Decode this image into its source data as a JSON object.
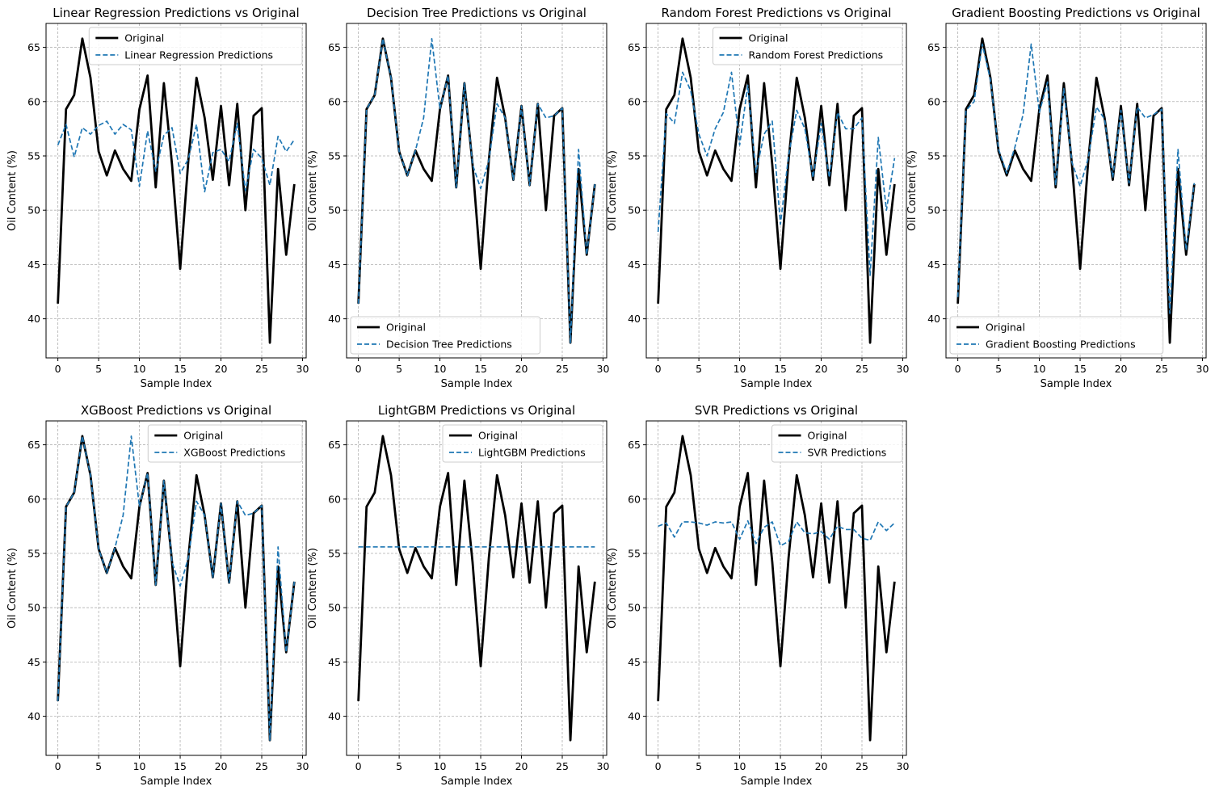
{
  "chart_data": [
    {
      "type": "line",
      "title": "Linear Regression Predictions vs Original",
      "xlabel": "Sample Index",
      "ylabel": "Oil Content (%)",
      "xlim": [
        -1.45,
        30.45
      ],
      "ylim": [
        36.4,
        67.2
      ],
      "xticks": [
        0,
        5,
        10,
        15,
        20,
        25,
        30
      ],
      "yticks": [
        40,
        45,
        50,
        55,
        60,
        65
      ],
      "grid": true,
      "legend_position": "upper right",
      "x": [
        0,
        1,
        2,
        3,
        4,
        5,
        6,
        7,
        8,
        9,
        10,
        11,
        12,
        13,
        14,
        15,
        16,
        17,
        18,
        19,
        20,
        21,
        22,
        23,
        24,
        25,
        26,
        27,
        28,
        29
      ],
      "series": [
        {
          "name": "Original",
          "color": "#000000",
          "style": "solid",
          "values": [
            41.4,
            59.3,
            60.6,
            65.8,
            62.2,
            55.4,
            53.2,
            55.5,
            53.8,
            52.7,
            59.3,
            62.4,
            52.1,
            61.7,
            54.2,
            44.6,
            54.6,
            62.2,
            58.5,
            52.8,
            59.6,
            52.3,
            59.8,
            50.0,
            58.7,
            59.4,
            37.8,
            53.8,
            45.9,
            52.4
          ]
        },
        {
          "name": "Linear Regression Predictions",
          "color": "#1f77b4",
          "style": "dashed",
          "values": [
            56.0,
            57.9,
            54.9,
            57.6,
            57.0,
            57.8,
            58.2,
            57.0,
            57.9,
            57.4,
            52.2,
            57.3,
            53.6,
            56.9,
            57.6,
            53.4,
            54.7,
            57.9,
            51.7,
            55.3,
            55.6,
            54.5,
            58.0,
            51.8,
            55.6,
            54.8,
            52.3,
            56.8,
            55.4,
            56.5
          ]
        }
      ]
    },
    {
      "type": "line",
      "title": "Decision Tree Predictions vs Original",
      "xlabel": "Sample Index",
      "ylabel": "Oil Content (%)",
      "xlim": [
        -1.45,
        30.45
      ],
      "ylim": [
        36.4,
        67.2
      ],
      "xticks": [
        0,
        5,
        10,
        15,
        20,
        25,
        30
      ],
      "yticks": [
        40,
        45,
        50,
        55,
        60,
        65
      ],
      "grid": true,
      "legend_position": "lower left",
      "x": [
        0,
        1,
        2,
        3,
        4,
        5,
        6,
        7,
        8,
        9,
        10,
        11,
        12,
        13,
        14,
        15,
        16,
        17,
        18,
        19,
        20,
        21,
        22,
        23,
        24,
        25,
        26,
        27,
        28,
        29
      ],
      "series": [
        {
          "name": "Original",
          "color": "#000000",
          "style": "solid",
          "values": [
            41.4,
            59.3,
            60.6,
            65.8,
            62.2,
            55.4,
            53.2,
            55.5,
            53.8,
            52.7,
            59.3,
            62.4,
            52.1,
            61.7,
            54.2,
            44.6,
            54.6,
            62.2,
            58.5,
            52.8,
            59.6,
            52.3,
            59.8,
            50.0,
            58.7,
            59.4,
            37.8,
            53.8,
            45.9,
            52.4
          ]
        },
        {
          "name": "Decision Tree Predictions",
          "color": "#1f77b4",
          "style": "dashed",
          "values": [
            41.4,
            59.3,
            60.6,
            65.8,
            62.2,
            55.4,
            53.2,
            55.5,
            58.5,
            65.8,
            59.3,
            62.4,
            52.1,
            61.7,
            54.2,
            52.0,
            54.6,
            59.8,
            58.5,
            52.8,
            59.6,
            52.3,
            59.8,
            58.5,
            58.7,
            59.4,
            37.8,
            55.6,
            45.9,
            52.4
          ]
        }
      ]
    },
    {
      "type": "line",
      "title": "Random Forest Predictions vs Original",
      "xlabel": "Sample Index",
      "ylabel": "Oil Content (%)",
      "xlim": [
        -1.45,
        30.45
      ],
      "ylim": [
        36.4,
        67.2
      ],
      "xticks": [
        0,
        5,
        10,
        15,
        20,
        25,
        30
      ],
      "yticks": [
        40,
        45,
        50,
        55,
        60,
        65
      ],
      "grid": true,
      "legend_position": "upper right",
      "x": [
        0,
        1,
        2,
        3,
        4,
        5,
        6,
        7,
        8,
        9,
        10,
        11,
        12,
        13,
        14,
        15,
        16,
        17,
        18,
        19,
        20,
        21,
        22,
        23,
        24,
        25,
        26,
        27,
        28,
        29
      ],
      "series": [
        {
          "name": "Original",
          "color": "#000000",
          "style": "solid",
          "values": [
            41.4,
            59.3,
            60.6,
            65.8,
            62.2,
            55.4,
            53.2,
            55.5,
            53.8,
            52.7,
            59.3,
            62.4,
            52.1,
            61.7,
            54.2,
            44.6,
            54.6,
            62.2,
            58.5,
            52.8,
            59.6,
            52.3,
            59.8,
            50.0,
            58.7,
            59.4,
            37.8,
            53.8,
            45.9,
            52.4
          ]
        },
        {
          "name": "Random Forest Predictions",
          "color": "#1f77b4",
          "style": "dashed",
          "values": [
            48.0,
            58.9,
            58.0,
            62.7,
            61.0,
            57.0,
            55.0,
            57.5,
            59.0,
            62.7,
            56.0,
            61.5,
            53.5,
            57.0,
            58.2,
            48.7,
            55.0,
            59.2,
            57.5,
            53.0,
            58.0,
            53.0,
            59.0,
            57.5,
            57.5,
            58.5,
            44.0,
            56.7,
            50.0,
            54.8
          ]
        }
      ]
    },
    {
      "type": "line",
      "title": "Gradient Boosting Predictions vs Original",
      "xlabel": "Sample Index",
      "ylabel": "Oil Content (%)",
      "xlim": [
        -1.45,
        30.45
      ],
      "ylim": [
        36.4,
        67.2
      ],
      "xticks": [
        0,
        5,
        10,
        15,
        20,
        25,
        30
      ],
      "yticks": [
        40,
        45,
        50,
        55,
        60,
        65
      ],
      "grid": true,
      "legend_position": "lower left",
      "x": [
        0,
        1,
        2,
        3,
        4,
        5,
        6,
        7,
        8,
        9,
        10,
        11,
        12,
        13,
        14,
        15,
        16,
        17,
        18,
        19,
        20,
        21,
        22,
        23,
        24,
        25,
        26,
        27,
        28,
        29
      ],
      "series": [
        {
          "name": "Original",
          "color": "#000000",
          "style": "solid",
          "values": [
            41.4,
            59.3,
            60.6,
            65.8,
            62.2,
            55.4,
            53.2,
            55.5,
            53.8,
            52.7,
            59.3,
            62.4,
            52.1,
            61.7,
            54.2,
            44.6,
            54.6,
            62.2,
            58.5,
            52.8,
            59.6,
            52.3,
            59.8,
            50.0,
            58.7,
            59.4,
            37.8,
            53.8,
            45.9,
            52.4
          ]
        },
        {
          "name": "Gradient Boosting Predictions",
          "color": "#1f77b4",
          "style": "dashed",
          "values": [
            42.0,
            59.2,
            60.0,
            65.3,
            62.0,
            55.6,
            53.4,
            55.8,
            58.8,
            65.3,
            59.0,
            61.8,
            52.3,
            61.2,
            54.4,
            52.2,
            54.8,
            59.5,
            58.4,
            53.0,
            59.2,
            52.5,
            59.5,
            58.5,
            58.8,
            59.3,
            40.5,
            55.6,
            46.3,
            52.5
          ]
        }
      ]
    },
    {
      "type": "line",
      "title": "XGBoost Predictions vs Original",
      "xlabel": "Sample Index",
      "ylabel": "Oil Content (%)",
      "xlim": [
        -1.45,
        30.45
      ],
      "ylim": [
        36.4,
        67.2
      ],
      "xticks": [
        0,
        5,
        10,
        15,
        20,
        25,
        30
      ],
      "yticks": [
        40,
        45,
        50,
        55,
        60,
        65
      ],
      "grid": true,
      "legend_position": "upper right",
      "x": [
        0,
        1,
        2,
        3,
        4,
        5,
        6,
        7,
        8,
        9,
        10,
        11,
        12,
        13,
        14,
        15,
        16,
        17,
        18,
        19,
        20,
        21,
        22,
        23,
        24,
        25,
        26,
        27,
        28,
        29
      ],
      "series": [
        {
          "name": "Original",
          "color": "#000000",
          "style": "solid",
          "values": [
            41.4,
            59.3,
            60.6,
            65.8,
            62.2,
            55.4,
            53.2,
            55.5,
            53.8,
            52.7,
            59.3,
            62.4,
            52.1,
            61.7,
            54.2,
            44.6,
            54.6,
            62.2,
            58.5,
            52.8,
            59.6,
            52.3,
            59.8,
            50.0,
            58.7,
            59.4,
            37.8,
            53.8,
            45.9,
            52.4
          ]
        },
        {
          "name": "XGBoost Predictions",
          "color": "#1f77b4",
          "style": "dashed",
          "values": [
            41.4,
            59.3,
            60.6,
            65.8,
            62.2,
            55.4,
            53.2,
            55.5,
            58.5,
            65.8,
            59.3,
            62.4,
            52.1,
            61.7,
            54.2,
            52.0,
            54.6,
            59.8,
            58.5,
            52.8,
            59.6,
            52.3,
            59.8,
            58.5,
            58.7,
            59.4,
            37.8,
            55.6,
            45.9,
            52.4
          ]
        }
      ]
    },
    {
      "type": "line",
      "title": "LightGBM Predictions vs Original",
      "xlabel": "Sample Index",
      "ylabel": "Oil Content (%)",
      "xlim": [
        -1.45,
        30.45
      ],
      "ylim": [
        36.4,
        67.2
      ],
      "xticks": [
        0,
        5,
        10,
        15,
        20,
        25,
        30
      ],
      "yticks": [
        40,
        45,
        50,
        55,
        60,
        65
      ],
      "grid": true,
      "legend_position": "upper right",
      "x": [
        0,
        1,
        2,
        3,
        4,
        5,
        6,
        7,
        8,
        9,
        10,
        11,
        12,
        13,
        14,
        15,
        16,
        17,
        18,
        19,
        20,
        21,
        22,
        23,
        24,
        25,
        26,
        27,
        28,
        29
      ],
      "series": [
        {
          "name": "Original",
          "color": "#000000",
          "style": "solid",
          "values": [
            41.4,
            59.3,
            60.6,
            65.8,
            62.2,
            55.4,
            53.2,
            55.5,
            53.8,
            52.7,
            59.3,
            62.4,
            52.1,
            61.7,
            54.2,
            44.6,
            54.6,
            62.2,
            58.5,
            52.8,
            59.6,
            52.3,
            59.8,
            50.0,
            58.7,
            59.4,
            37.8,
            53.8,
            45.9,
            52.4
          ]
        },
        {
          "name": "LightGBM Predictions",
          "color": "#1f77b4",
          "style": "dashed",
          "values": [
            55.6,
            55.6,
            55.6,
            55.6,
            55.6,
            55.6,
            55.6,
            55.6,
            55.6,
            55.6,
            55.6,
            55.6,
            55.6,
            55.6,
            55.6,
            55.6,
            55.6,
            55.6,
            55.6,
            55.6,
            55.6,
            55.6,
            55.6,
            55.6,
            55.6,
            55.6,
            55.6,
            55.6,
            55.6,
            55.6
          ]
        }
      ]
    },
    {
      "type": "line",
      "title": "SVR Predictions vs Original",
      "xlabel": "Sample Index",
      "ylabel": "Oil Content (%)",
      "xlim": [
        -1.45,
        30.45
      ],
      "ylim": [
        36.4,
        67.2
      ],
      "xticks": [
        0,
        5,
        10,
        15,
        20,
        25,
        30
      ],
      "yticks": [
        40,
        45,
        50,
        55,
        60,
        65
      ],
      "grid": true,
      "legend_position": "upper right",
      "x": [
        0,
        1,
        2,
        3,
        4,
        5,
        6,
        7,
        8,
        9,
        10,
        11,
        12,
        13,
        14,
        15,
        16,
        17,
        18,
        19,
        20,
        21,
        22,
        23,
        24,
        25,
        26,
        27,
        28,
        29
      ],
      "series": [
        {
          "name": "Original",
          "color": "#000000",
          "style": "solid",
          "values": [
            41.4,
            59.3,
            60.6,
            65.8,
            62.2,
            55.4,
            53.2,
            55.5,
            53.8,
            52.7,
            59.3,
            62.4,
            52.1,
            61.7,
            54.2,
            44.6,
            54.6,
            62.2,
            58.5,
            52.8,
            59.6,
            52.3,
            59.8,
            50.0,
            58.7,
            59.4,
            37.8,
            53.8,
            45.9,
            52.4
          ]
        },
        {
          "name": "SVR Predictions",
          "color": "#1f77b4",
          "style": "dashed",
          "values": [
            57.5,
            57.8,
            56.5,
            57.9,
            57.9,
            57.8,
            57.6,
            57.9,
            57.8,
            57.9,
            56.3,
            58.0,
            55.9,
            57.4,
            57.9,
            55.7,
            56.1,
            57.9,
            56.9,
            56.8,
            57.0,
            56.3,
            57.5,
            57.2,
            57.2,
            56.4,
            56.2,
            57.9,
            57.1,
            57.8
          ]
        }
      ]
    }
  ]
}
